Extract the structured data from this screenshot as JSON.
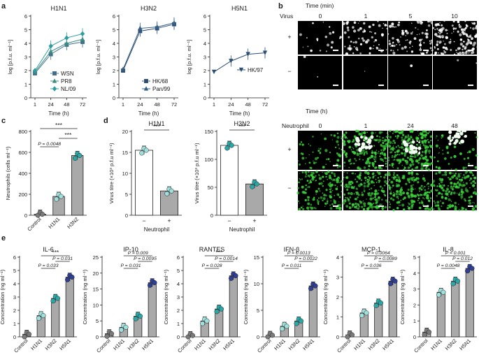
{
  "panel_letters": [
    "a",
    "b",
    "c",
    "d",
    "e"
  ],
  "colors": {
    "wsn": "#3f6c8c",
    "pr8": "#3f8c7f",
    "nl09": "#2f9da0",
    "hk68": "#2f4d72",
    "pan99": "#355f86",
    "hk97": "#2b4e72",
    "dot_control": "#7a7a7a",
    "dot_h1n1": "#9fe0dd",
    "dot_h3n2": "#2aa8a8",
    "dot_h5n1": "#2f3f96",
    "bar_grey": "#a9a9a9",
    "bar_white": "#ffffff",
    "micro_bg": "#000000",
    "micro_white": "#ffffff",
    "micro_green": "#3bd13b"
  },
  "chart_data": [
    {
      "id": "a1",
      "type": "line",
      "title": "H1N1",
      "xlabel": "Time (h)",
      "ylabel": "log [p.f.u. ml⁻¹]",
      "x": [
        1,
        24,
        48,
        72
      ],
      "xticks": [
        "1",
        "24",
        "48",
        "72"
      ],
      "ylim": [
        0,
        6
      ],
      "yticks": [
        "0",
        "1",
        "2",
        "3",
        "4",
        "5",
        "6"
      ],
      "legend_position": "bottom-right",
      "series": [
        {
          "name": "WSN",
          "marker": "square",
          "values": [
            1.8,
            3.2,
            3.9,
            4.1
          ]
        },
        {
          "name": "PR8",
          "marker": "triangle",
          "values": [
            1.9,
            3.4,
            4.0,
            4.3
          ]
        },
        {
          "name": "NL/09",
          "marker": "diamond",
          "values": [
            2.0,
            3.8,
            4.4,
            4.7
          ]
        }
      ]
    },
    {
      "id": "a2",
      "type": "line",
      "title": "H3N2",
      "xlabel": "Time (h)",
      "ylabel": "log [p.f.u. ml⁻¹]",
      "x": [
        1,
        24,
        48,
        72
      ],
      "xticks": [
        "1",
        "24",
        "48",
        "72"
      ],
      "ylim": [
        0,
        6
      ],
      "yticks": [
        "0",
        "1",
        "2",
        "3",
        "4",
        "5",
        "6"
      ],
      "legend_position": "bottom-right",
      "series": [
        {
          "name": "HK/68",
          "marker": "square",
          "values": [
            2.0,
            4.9,
            5.1,
            5.4
          ]
        },
        {
          "name": "Pan/99",
          "marker": "triangle",
          "values": [
            2.1,
            5.1,
            5.2,
            5.5
          ]
        }
      ]
    },
    {
      "id": "a3",
      "type": "line",
      "title": "H5N1",
      "xlabel": "Time (h)",
      "ylabel": "log [p.f.u. ml⁻¹]",
      "x": [
        1,
        24,
        48,
        72
      ],
      "xticks": [
        "1",
        "24",
        "48",
        "72"
      ],
      "ylim": [
        0,
        6
      ],
      "yticks": [
        "0",
        "1",
        "2",
        "3",
        "4",
        "5",
        "6"
      ],
      "legend_position": "right",
      "series": [
        {
          "name": "HK/97",
          "marker": "triangle-down",
          "values": [
            1.9,
            2.7,
            3.2,
            3.3
          ]
        }
      ]
    },
    {
      "id": "c",
      "type": "bar",
      "title": "",
      "ylabel": "Neutrophils (cells ml⁻¹)",
      "categories": [
        "Control",
        "H1N1",
        "H3N2"
      ],
      "values": [
        10,
        180,
        570
      ],
      "ylim": [
        0,
        800
      ],
      "yticks": [
        "0",
        "200",
        "400",
        "600",
        "800"
      ],
      "annotations": [
        "***",
        "P = 0.0048",
        "***"
      ]
    },
    {
      "id": "d1",
      "type": "bar",
      "title": "H1N1",
      "ylabel": "Virus titre (×10³ p.f.u ml⁻¹)",
      "xlabel": "Neutrophil",
      "categories": [
        "−",
        "+"
      ],
      "values": [
        15.5,
        5.8
      ],
      "ylim": [
        0,
        20
      ],
      "yticks": [
        "0",
        "5",
        "10",
        "15",
        "20"
      ],
      "annotations": [
        "***"
      ]
    },
    {
      "id": "d2",
      "type": "bar",
      "title": "H3N2",
      "ylabel": "Virus titre (×10³ p.f.u ml⁻¹)",
      "xlabel": "Neutrophil",
      "categories": [
        "−",
        "+"
      ],
      "values": [
        125,
        56
      ],
      "ylim": [
        0,
        150
      ],
      "yticks": [
        "0",
        "50",
        "100",
        "150"
      ],
      "annotations": [
        "***"
      ]
    },
    {
      "id": "e1",
      "type": "bar",
      "title": "IL-6",
      "ylabel": "Concentration (ng ml⁻¹)",
      "categories": [
        "Control",
        "H1N1",
        "H3N2",
        "H5N1"
      ],
      "values": [
        0.2,
        1.6,
        2.9,
        4.5
      ],
      "ylim": [
        0,
        6
      ],
      "yticks": [
        "0",
        "1",
        "2",
        "3",
        "4",
        "5",
        "6"
      ],
      "annotations": [
        "***",
        "P = 0.031",
        "P = 0.033"
      ]
    },
    {
      "id": "e2",
      "type": "bar",
      "title": "IP-10",
      "ylabel": "Concentration (ng ml⁻¹)",
      "categories": [
        "Control",
        "H1N1",
        "H3N2",
        "H5N1"
      ],
      "values": [
        1,
        3,
        6.5,
        17
      ],
      "ylim": [
        0,
        25
      ],
      "yticks": [
        "0",
        "5",
        "10",
        "15",
        "20",
        "25"
      ],
      "annotations": [
        "P = 0.009",
        "P = 0.0095",
        "P = 0.031"
      ]
    },
    {
      "id": "e3",
      "type": "bar",
      "title": "RANTES",
      "ylabel": "Concentration (ng ml⁻¹)",
      "categories": [
        "Control",
        "H1N1",
        "H3N2",
        "H5N1"
      ],
      "values": [
        0.1,
        1.2,
        2.1,
        4.6
      ],
      "ylim": [
        0,
        6
      ],
      "yticks": [
        "0",
        "1",
        "2",
        "3",
        "4",
        "5",
        "6"
      ],
      "annotations": [
        "***",
        "P = 0.0014",
        "P = 0.028"
      ]
    },
    {
      "id": "e4",
      "type": "bar",
      "title": "IFN-β",
      "ylabel": "Concentration (ng ml⁻¹)",
      "categories": [
        "Control",
        "H1N1",
        "H3N2",
        "H5N1"
      ],
      "values": [
        0.3,
        2,
        3,
        9.6
      ],
      "ylim": [
        0,
        15
      ],
      "yticks": [
        "0",
        "5",
        "10",
        "15"
      ],
      "annotations": [
        "P = 0.0013",
        "P = 0.0022",
        "P = 0.011"
      ]
    },
    {
      "id": "e5",
      "type": "bar",
      "title": "MCP-1",
      "ylabel": "Concentration (ng ml⁻¹)",
      "categories": [
        "Control",
        "H1N1",
        "H3N2",
        "H5N1"
      ],
      "values": [
        0.1,
        1.2,
        1.7,
        2.8
      ],
      "ylim": [
        0,
        4
      ],
      "yticks": [
        "0",
        "1",
        "2",
        "3",
        "4"
      ],
      "annotations": [
        "P = 0.0064",
        "P = 0.0089",
        "P = 0.036"
      ]
    },
    {
      "id": "e6",
      "type": "bar",
      "title": "IL-8",
      "ylabel": "Concentration (ng ml⁻¹)",
      "categories": [
        "Control",
        "H1N1",
        "H3N2",
        "H5N1"
      ],
      "values": [
        0.3,
        2.8,
        3.5,
        4.3
      ],
      "ylim": [
        0,
        5
      ],
      "yticks": [
        "0",
        "1",
        "2",
        "3",
        "4",
        "5"
      ],
      "annotations": [
        "P = 0.001",
        "P = 0.012",
        "P = 0.0048"
      ]
    }
  ],
  "panel_b": {
    "top": {
      "header": "Time (min)",
      "row_label": "Virus",
      "columns": [
        "0",
        "1",
        "5",
        "10"
      ],
      "rows": [
        "+",
        "−"
      ]
    },
    "bottom": {
      "header": "Time (h)",
      "row_label": "Neutrophil",
      "columns": [
        "0",
        "1",
        "24",
        "48"
      ],
      "rows": [
        "+",
        "−"
      ]
    }
  }
}
